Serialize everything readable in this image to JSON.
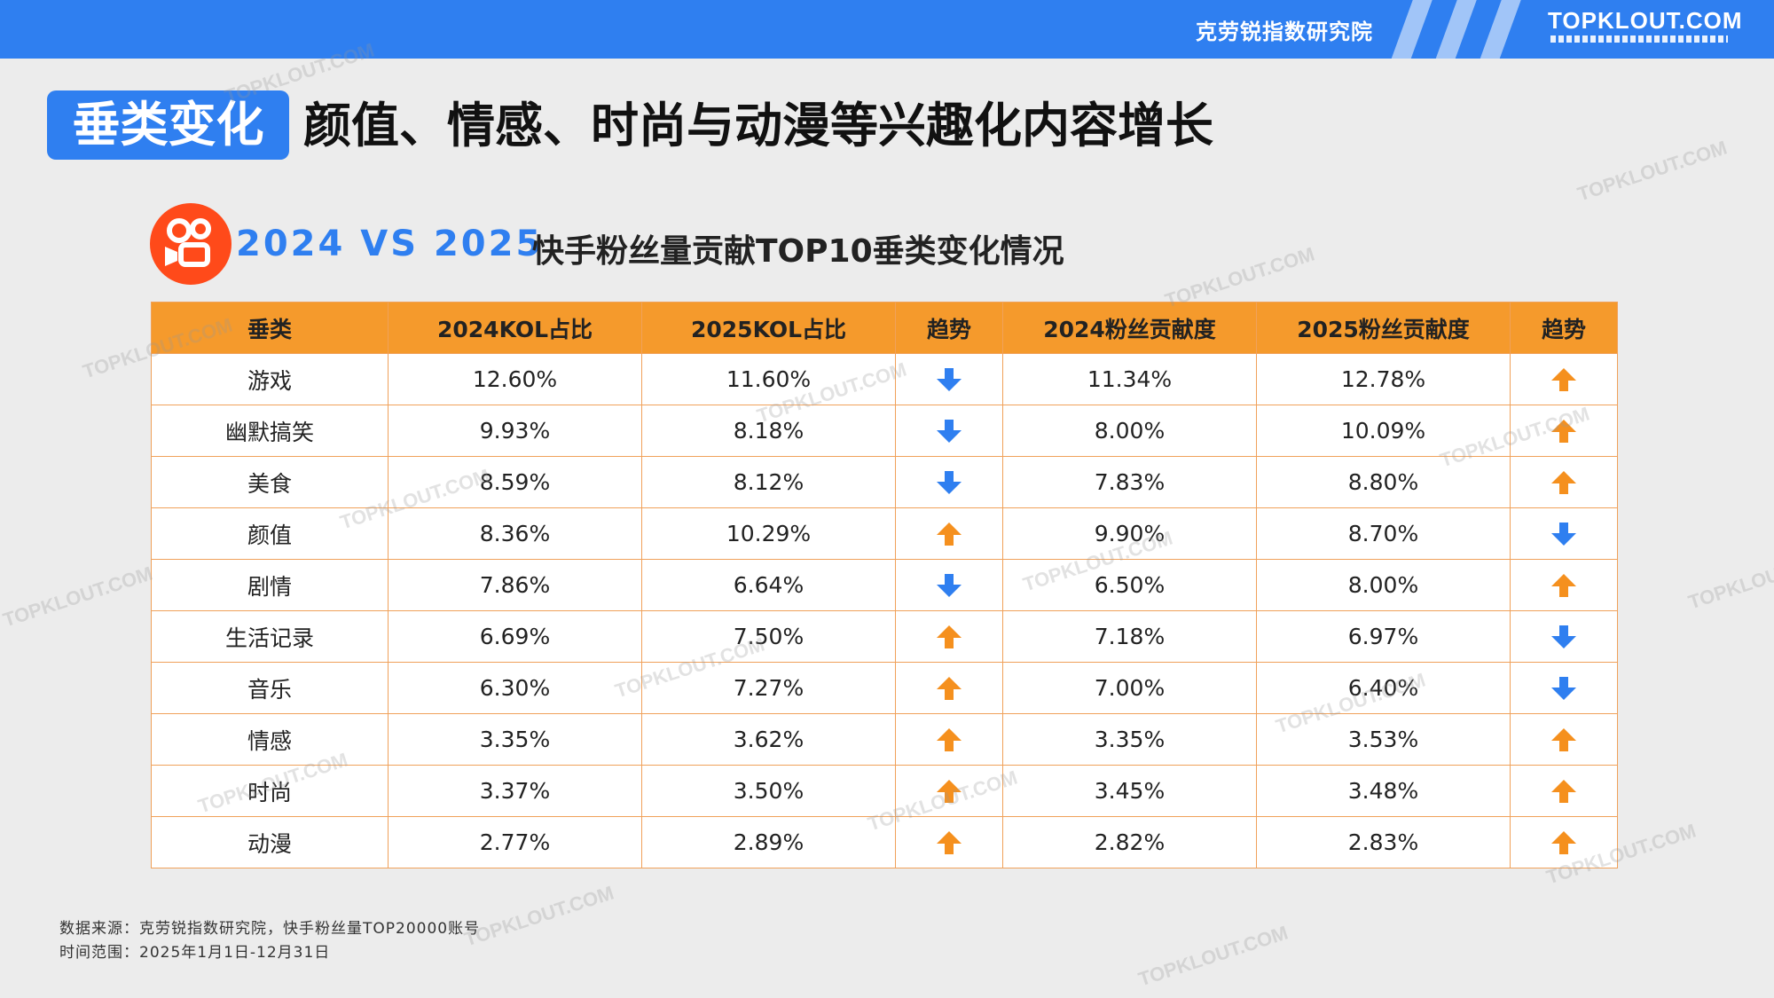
{
  "header": {
    "brand_cn": "克劳锐指数研究院",
    "brand_en": "TOPKLOUT.COM"
  },
  "title": {
    "badge": "垂类变化",
    "main": "颜值、情感、时尚与动漫等兴趣化内容增长"
  },
  "subtitle": {
    "years": "2024 VS 2025",
    "text": "快手粉丝量贡献TOP10垂类变化情况"
  },
  "table": {
    "headers": [
      "垂类",
      "2024KOL占比",
      "2025KOL占比",
      "趋势",
      "2024粉丝贡献度",
      "2025粉丝贡献度",
      "趋势"
    ],
    "rows": [
      {
        "cat": "游戏",
        "kol24": "12.60%",
        "kol25": "11.60%",
        "t1": "down",
        "fan24": "11.34%",
        "fan25": "12.78%",
        "t2": "up"
      },
      {
        "cat": "幽默搞笑",
        "kol24": "9.93%",
        "kol25": "8.18%",
        "t1": "down",
        "fan24": "8.00%",
        "fan25": "10.09%",
        "t2": "up"
      },
      {
        "cat": "美食",
        "kol24": "8.59%",
        "kol25": "8.12%",
        "t1": "down",
        "fan24": "7.83%",
        "fan25": "8.80%",
        "t2": "up"
      },
      {
        "cat": "颜值",
        "kol24": "8.36%",
        "kol25": "10.29%",
        "t1": "up",
        "fan24": "9.90%",
        "fan25": "8.70%",
        "t2": "down"
      },
      {
        "cat": "剧情",
        "kol24": "7.86%",
        "kol25": "6.64%",
        "t1": "down",
        "fan24": "6.50%",
        "fan25": "8.00%",
        "t2": "up"
      },
      {
        "cat": "生活记录",
        "kol24": "6.69%",
        "kol25": "7.50%",
        "t1": "up",
        "fan24": "7.18%",
        "fan25": "6.97%",
        "t2": "down"
      },
      {
        "cat": "音乐",
        "kol24": "6.30%",
        "kol25": "7.27%",
        "t1": "up",
        "fan24": "7.00%",
        "fan25": "6.40%",
        "t2": "down"
      },
      {
        "cat": "情感",
        "kol24": "3.35%",
        "kol25": "3.62%",
        "t1": "up",
        "fan24": "3.35%",
        "fan25": "3.53%",
        "t2": "up"
      },
      {
        "cat": "时尚",
        "kol24": "3.37%",
        "kol25": "3.50%",
        "t1": "up",
        "fan24": "3.45%",
        "fan25": "3.48%",
        "t2": "up"
      },
      {
        "cat": "动漫",
        "kol24": "2.77%",
        "kol25": "2.89%",
        "t1": "up",
        "fan24": "2.82%",
        "fan25": "2.83%",
        "t2": "up"
      }
    ]
  },
  "footnote": {
    "source": "数据来源：克劳锐指数研究院，快手粉丝量TOP20000账号",
    "range": "时间范围：2025年1月1日-12月31日"
  },
  "colors": {
    "accent_blue": "#2f7ff0",
    "header_orange": "#f59a2c",
    "up_arrow": "#f5901e",
    "down_arrow": "#2f7ff0"
  },
  "watermark": "TOPKLOUT.COM"
}
